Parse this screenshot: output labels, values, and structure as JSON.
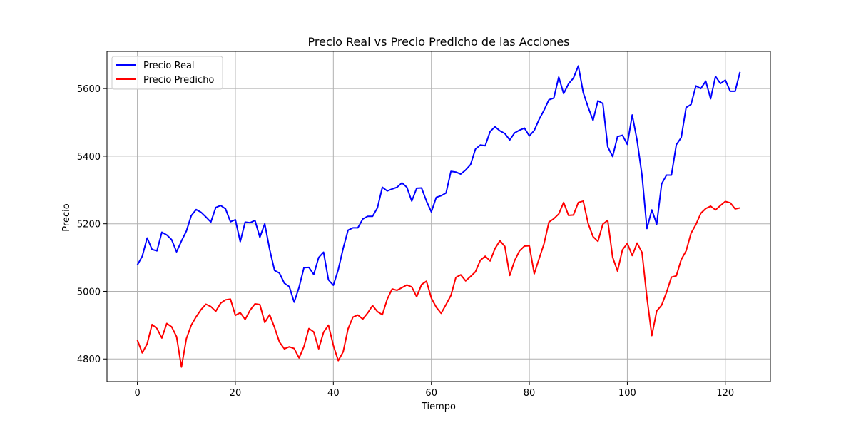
{
  "chart_data": {
    "type": "line",
    "title": "Precio Real vs Precio Predicho de las Acciones",
    "xlabel": "Tiempo",
    "ylabel": "Precio",
    "xlim": [
      -6.2,
      129.2
    ],
    "ylim": [
      4733,
      5710
    ],
    "xticks": [
      0,
      20,
      40,
      60,
      80,
      100,
      120
    ],
    "yticks": [
      4800,
      5000,
      5200,
      5400,
      5600
    ],
    "grid": true,
    "legend_position": "upper-left",
    "series": [
      {
        "name": "Precio Real",
        "color": "#0000ff",
        "values": [
          5078,
          5104,
          5158,
          5124,
          5120,
          5175,
          5167,
          5153,
          5117,
          5149,
          5178,
          5224,
          5242,
          5234,
          5220,
          5205,
          5248,
          5254,
          5244,
          5206,
          5212,
          5147,
          5205,
          5203,
          5210,
          5160,
          5200,
          5124,
          5062,
          5054,
          5024,
          5014,
          4968,
          5012,
          5070,
          5071,
          5050,
          5100,
          5116,
          5034,
          5018,
          5064,
          5127,
          5181,
          5188,
          5188,
          5214,
          5222,
          5222,
          5247,
          5308,
          5297,
          5303,
          5308,
          5321,
          5308,
          5267,
          5305,
          5306,
          5267,
          5235,
          5278,
          5283,
          5291,
          5355,
          5353,
          5347,
          5359,
          5375,
          5421,
          5433,
          5431,
          5473,
          5487,
          5475,
          5467,
          5448,
          5469,
          5477,
          5483,
          5460,
          5476,
          5509,
          5536,
          5567,
          5572,
          5634,
          5585,
          5614,
          5631,
          5667,
          5588,
          5545,
          5506,
          5564,
          5556,
          5428,
          5399,
          5458,
          5462,
          5435,
          5522,
          5446,
          5343,
          5186,
          5241,
          5199,
          5318,
          5344,
          5344,
          5434,
          5455,
          5544,
          5553,
          5608,
          5600,
          5622,
          5570,
          5636,
          5615,
          5625,
          5592,
          5592,
          5649
        ]
      },
      {
        "name": "Precio Predicho",
        "color": "#ff0000",
        "values": [
          4856,
          4818,
          4845,
          4902,
          4890,
          4862,
          4905,
          4895,
          4866,
          4776,
          4860,
          4900,
          4925,
          4946,
          4962,
          4955,
          4941,
          4965,
          4975,
          4977,
          4929,
          4937,
          4917,
          4944,
          4963,
          4961,
          4908,
          4931,
          4893,
          4850,
          4830,
          4836,
          4831,
          4803,
          4837,
          4890,
          4880,
          4830,
          4879,
          4900,
          4840,
          4795,
          4821,
          4889,
          4924,
          4930,
          4918,
          4936,
          4958,
          4940,
          4931,
          4977,
          5007,
          5003,
          5011,
          5019,
          5013,
          4984,
          5020,
          5030,
          4980,
          4953,
          4935,
          4961,
          4988,
          5041,
          5049,
          5031,
          5044,
          5058,
          5092,
          5104,
          5090,
          5127,
          5150,
          5133,
          5047,
          5091,
          5120,
          5134,
          5135,
          5052,
          5097,
          5141,
          5205,
          5215,
          5229,
          5263,
          5225,
          5226,
          5263,
          5267,
          5201,
          5162,
          5148,
          5199,
          5210,
          5101,
          5060,
          5123,
          5142,
          5106,
          5143,
          5115,
          4982,
          4869,
          4942,
          4959,
          4997,
          5042,
          5046,
          5094,
          5120,
          5172,
          5198,
          5231,
          5245,
          5252,
          5241,
          5254,
          5266,
          5262,
          5244,
          5247
        ]
      }
    ]
  }
}
